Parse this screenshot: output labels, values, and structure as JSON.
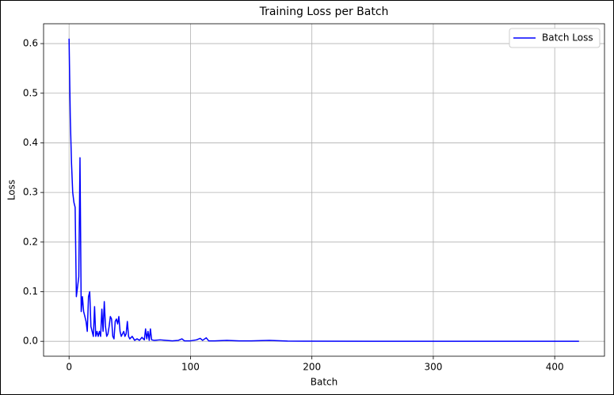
{
  "chart_data": {
    "type": "line",
    "title": "Training Loss per Batch",
    "x_label": "Batch",
    "y_label": "Loss",
    "x": [
      0,
      1,
      2,
      3,
      4,
      5,
      6,
      7,
      8,
      9,
      10,
      11,
      12,
      13,
      14,
      15,
      16,
      17,
      18,
      19,
      20,
      21,
      22,
      23,
      24,
      25,
      26,
      27,
      28,
      29,
      30,
      31,
      32,
      33,
      34,
      35,
      36,
      37,
      38,
      39,
      40,
      41,
      42,
      43,
      44,
      45,
      46,
      47,
      48,
      49,
      50,
      52,
      54,
      56,
      58,
      60,
      62,
      63,
      64,
      65,
      66,
      67,
      68,
      70,
      75,
      80,
      85,
      90,
      93,
      95,
      100,
      105,
      108,
      110,
      113,
      115,
      120,
      130,
      140,
      150,
      165,
      180,
      200,
      250,
      300,
      350,
      420
    ],
    "series": [
      {
        "name": "Batch Loss",
        "color": "#0000ff",
        "values": [
          0.61,
          0.45,
          0.36,
          0.3,
          0.28,
          0.27,
          0.09,
          0.11,
          0.13,
          0.37,
          0.06,
          0.09,
          0.06,
          0.05,
          0.04,
          0.02,
          0.09,
          0.1,
          0.03,
          0.02,
          0.01,
          0.07,
          0.01,
          0.02,
          0.01,
          0.02,
          0.01,
          0.065,
          0.02,
          0.08,
          0.03,
          0.01,
          0.015,
          0.03,
          0.05,
          0.045,
          0.01,
          0.005,
          0.04,
          0.045,
          0.035,
          0.05,
          0.02,
          0.01,
          0.015,
          0.02,
          0.01,
          0.015,
          0.04,
          0.01,
          0.005,
          0.01,
          0.002,
          0.005,
          0.002,
          0.008,
          0.003,
          0.025,
          0.005,
          0.02,
          0.002,
          0.025,
          0.003,
          0.002,
          0.003,
          0.002,
          0.001,
          0.002,
          0.005,
          0.001,
          0.001,
          0.003,
          0.006,
          0.002,
          0.007,
          0.001,
          0.001,
          0.002,
          0.001,
          0.001,
          0.002,
          0.0005,
          0.0003,
          0.0002,
          0.0001,
          0.0001,
          0.0001
        ]
      }
    ],
    "xlim": [
      -21,
      441
    ],
    "ylim": [
      -0.03,
      0.64
    ],
    "xticks": [
      0,
      100,
      200,
      300,
      400
    ],
    "yticks": [
      {
        "value": 0,
        "label": "0.0"
      },
      0.1,
      0.2,
      0.3,
      0.4,
      0.5,
      0.6
    ],
    "grid": true,
    "legend": "upper right"
  }
}
